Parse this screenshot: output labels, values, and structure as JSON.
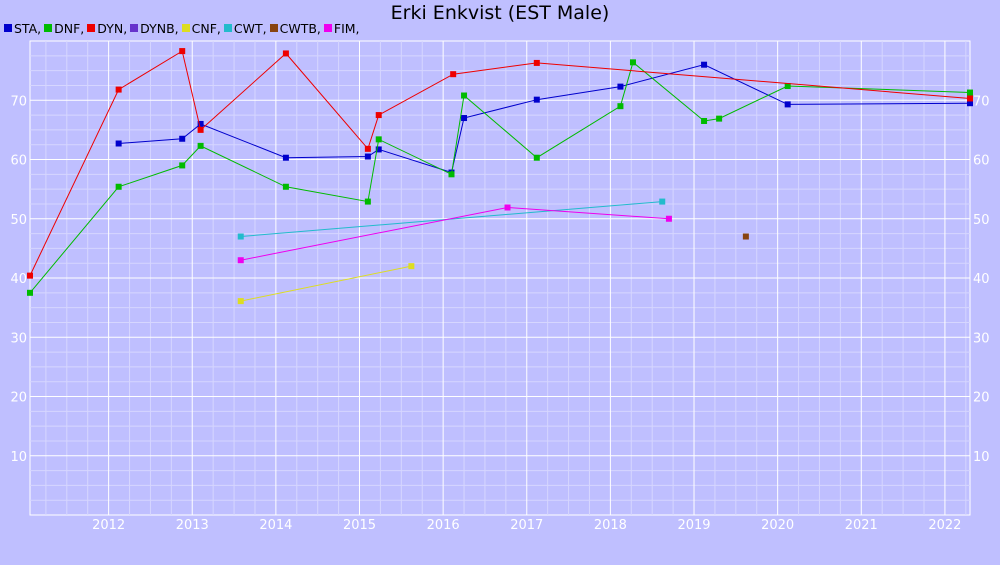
{
  "chart_data": {
    "type": "line",
    "title": "Erki Enkvist (EST Male)",
    "xlabel": "",
    "ylabel": "",
    "xlim": [
      2011.06,
      2022.3
    ],
    "ylim": [
      0,
      80
    ],
    "x_ticks": [
      2012,
      2013,
      2014,
      2015,
      2016,
      2017,
      2018,
      2019,
      2020,
      2021,
      2022
    ],
    "y_ticks": [
      10,
      20,
      30,
      40,
      50,
      60,
      70
    ],
    "grid": true,
    "legend_position": "top-left",
    "series": [
      {
        "name": "STA,",
        "color": "#0000cc",
        "points": [
          [
            2012.12,
            62.7
          ],
          [
            2012.88,
            63.5
          ],
          [
            2013.1,
            66.0
          ],
          [
            2014.12,
            60.3
          ],
          [
            2015.1,
            60.5
          ],
          [
            2015.23,
            61.7
          ],
          [
            2016.1,
            57.8
          ],
          [
            2016.25,
            67.0
          ],
          [
            2017.12,
            70.1
          ],
          [
            2018.12,
            72.3
          ],
          [
            2019.12,
            76.0
          ],
          [
            2020.12,
            69.3
          ],
          [
            2022.3,
            69.5
          ]
        ]
      },
      {
        "name": "DNF,",
        "color": "#00bb00",
        "points": [
          [
            2011.06,
            37.5
          ],
          [
            2012.12,
            55.4
          ],
          [
            2012.88,
            59.0
          ],
          [
            2013.1,
            62.3
          ],
          [
            2014.12,
            55.4
          ],
          [
            2015.1,
            52.9
          ],
          [
            2015.23,
            63.4
          ],
          [
            2016.1,
            57.5
          ],
          [
            2016.25,
            70.8
          ],
          [
            2017.12,
            60.3
          ],
          [
            2018.12,
            69.0
          ],
          [
            2018.27,
            76.4
          ],
          [
            2019.12,
            66.5
          ],
          [
            2019.3,
            66.9
          ],
          [
            2020.12,
            72.4
          ],
          [
            2022.3,
            71.3
          ]
        ]
      },
      {
        "name": "DYN,",
        "color": "#ee0000",
        "points": [
          [
            2011.06,
            40.4
          ],
          [
            2012.12,
            71.8
          ],
          [
            2012.88,
            78.3
          ],
          [
            2013.1,
            65.0
          ],
          [
            2014.12,
            77.9
          ],
          [
            2015.1,
            61.8
          ],
          [
            2015.23,
            67.5
          ],
          [
            2016.12,
            74.4
          ],
          [
            2017.12,
            76.3
          ],
          [
            2022.3,
            70.3
          ]
        ]
      },
      {
        "name": "DYNB,",
        "color": "#6633cc",
        "points": []
      },
      {
        "name": "CNF,",
        "color": "#dddd22",
        "points": [
          [
            2013.58,
            36.1
          ],
          [
            2015.62,
            42.0
          ]
        ]
      },
      {
        "name": "CWT,",
        "color": "#22bbcc",
        "points": [
          [
            2013.58,
            47.0
          ],
          [
            2018.62,
            52.9
          ]
        ]
      },
      {
        "name": "CWTB,",
        "color": "#884411",
        "points": [
          [
            2019.62,
            47.0
          ]
        ]
      },
      {
        "name": "FIM,",
        "color": "#ee00ee",
        "points": [
          [
            2013.58,
            43.0
          ],
          [
            2016.77,
            51.9
          ],
          [
            2018.7,
            50.0
          ]
        ]
      }
    ]
  }
}
